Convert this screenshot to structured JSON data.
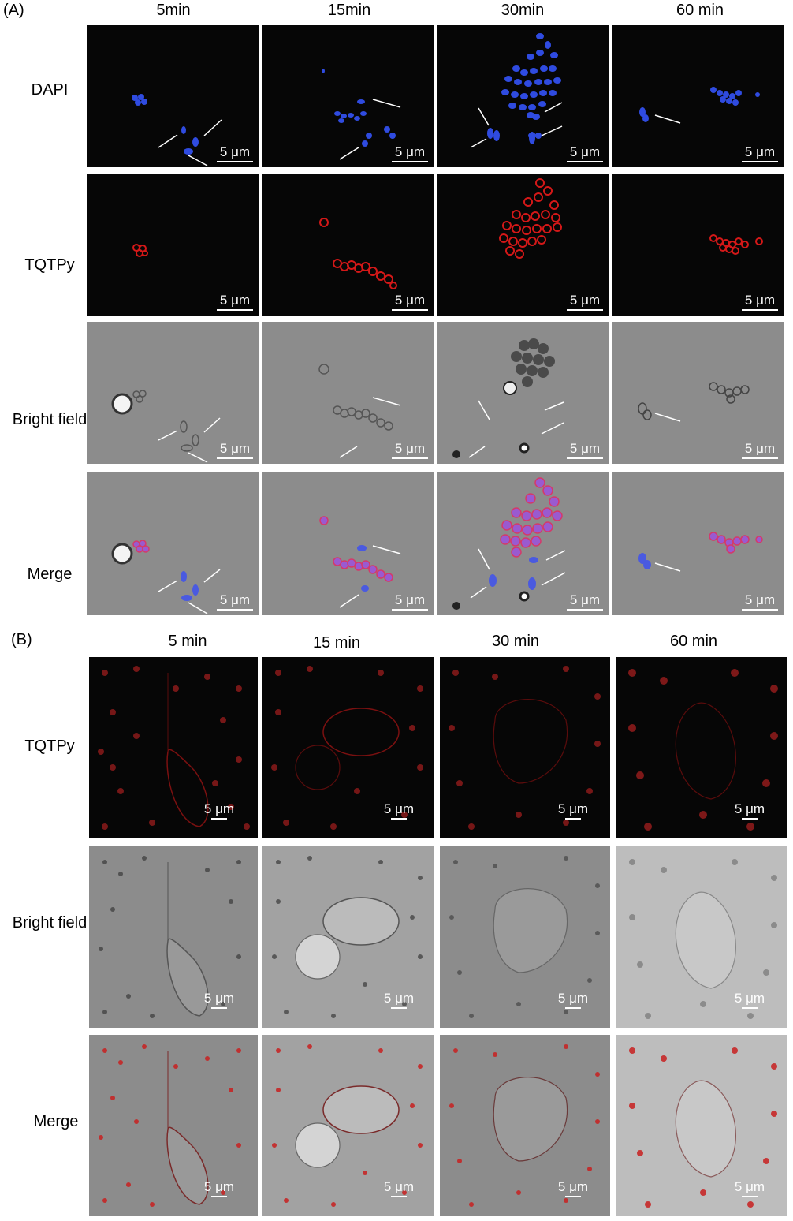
{
  "panelA": {
    "label": "(A)",
    "columns": [
      "5min",
      "15min",
      "30min",
      "60 min"
    ],
    "rows": [
      "DAPI",
      "TQTPy",
      "Bright field",
      "Merge"
    ]
  },
  "panelB": {
    "label": "(B)",
    "columns": [
      "5 min",
      "15 min",
      "30 min",
      "60 min"
    ],
    "rows": [
      "TQTPy",
      "Bright field",
      "Merge"
    ]
  },
  "scale_bar": "5 μm",
  "colors": {
    "dapi": "#2f4be0",
    "tqtpy": "#d41818",
    "background_dark": "#060606",
    "brightfield": "#8c8c8c",
    "arrow": "#ffffff"
  }
}
